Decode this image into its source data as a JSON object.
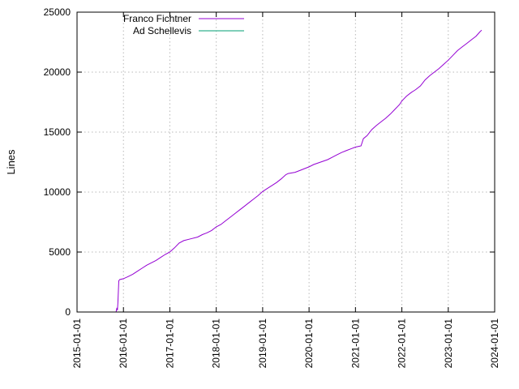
{
  "figure": {
    "background": "#ffffff",
    "border_color": "#000000",
    "grid_color": "#b8b8b8",
    "text_color": "#000000"
  },
  "chart_data": {
    "type": "line",
    "title": "",
    "xlabel": "",
    "ylabel": "Lines",
    "x_tick_labels": [
      "2015-01-01",
      "2016-01-01",
      "2017-01-01",
      "2018-01-01",
      "2019-01-01",
      "2020-01-01",
      "2021-01-01",
      "2022-01-01",
      "2023-01-01",
      "2024-01-01"
    ],
    "y_ticks": [
      0,
      5000,
      10000,
      15000,
      20000,
      25000
    ],
    "xlim_years": [
      2015,
      2024
    ],
    "ylim": [
      0,
      25000
    ],
    "grid": true,
    "legend_position": "top-left-inside",
    "series": [
      {
        "name": "Franco Fichtner",
        "color": "#9400d3",
        "x_years": [
          2015.84,
          2015.86,
          2015.87,
          2015.88,
          2015.9,
          2015.92,
          2016.0,
          2016.1,
          2016.2,
          2016.3,
          2016.4,
          2016.5,
          2016.6,
          2016.7,
          2016.8,
          2016.9,
          2017.0,
          2017.1,
          2017.2,
          2017.3,
          2017.45,
          2017.6,
          2017.7,
          2017.8,
          2017.9,
          2018.0,
          2018.1,
          2018.2,
          2018.3,
          2018.4,
          2018.5,
          2018.6,
          2018.7,
          2018.8,
          2018.9,
          2019.0,
          2019.1,
          2019.2,
          2019.3,
          2019.4,
          2019.5,
          2019.55,
          2019.7,
          2019.8,
          2019.9,
          2020.0,
          2020.1,
          2020.25,
          2020.4,
          2020.5,
          2020.6,
          2020.7,
          2020.8,
          2020.9,
          2021.0,
          2021.08,
          2021.12,
          2021.17,
          2021.25,
          2021.35,
          2021.45,
          2021.55,
          2021.65,
          2021.75,
          2021.85,
          2021.95,
          2022.0,
          2022.1,
          2022.2,
          2022.3,
          2022.4,
          2022.5,
          2022.6,
          2022.7,
          2022.8,
          2022.9,
          2023.0,
          2023.1,
          2023.2,
          2023.3,
          2023.4,
          2023.5,
          2023.6,
          2023.68,
          2023.72
        ],
        "values": [
          0,
          350,
          150,
          800,
          2600,
          2700,
          2780,
          2950,
          3150,
          3400,
          3650,
          3900,
          4100,
          4300,
          4550,
          4800,
          5000,
          5350,
          5750,
          5950,
          6100,
          6250,
          6450,
          6600,
          6800,
          7100,
          7300,
          7600,
          7900,
          8200,
          8500,
          8800,
          9100,
          9400,
          9700,
          10050,
          10300,
          10550,
          10800,
          11100,
          11450,
          11550,
          11650,
          11800,
          11950,
          12100,
          12300,
          12500,
          12700,
          12900,
          13100,
          13300,
          13450,
          13600,
          13750,
          13820,
          13850,
          14450,
          14700,
          15200,
          15550,
          15850,
          16150,
          16500,
          16900,
          17300,
          17600,
          18000,
          18300,
          18550,
          18850,
          19350,
          19700,
          20000,
          20300,
          20650,
          21000,
          21400,
          21800,
          22100,
          22400,
          22700,
          23000,
          23350,
          23500
        ]
      },
      {
        "name": "Ad Schellevis",
        "color": "#009e73",
        "x_years": [],
        "values": []
      }
    ]
  }
}
